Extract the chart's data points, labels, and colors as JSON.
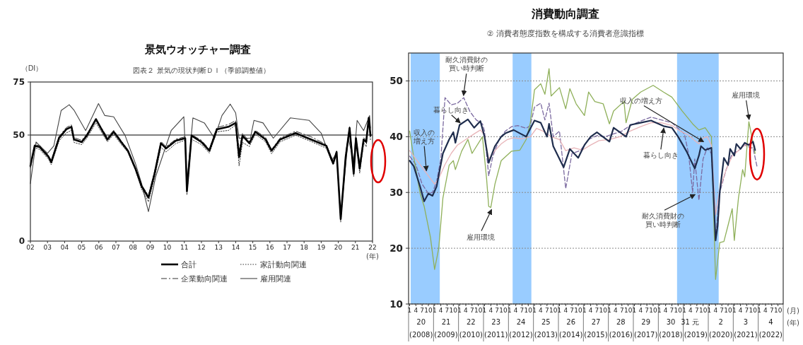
{
  "chart_data": [
    {
      "type": "line",
      "title": "景気ウオッチャー調査",
      "subtitle": "図表２ 景気の現状判断ＤＩ（季節調整値）",
      "ylabel": "（DI）",
      "xlim": [
        2002,
        2022
      ],
      "ylim": [
        0,
        75
      ],
      "yticks": [
        0,
        50,
        75
      ],
      "xticks": [
        {
          "value": 2002,
          "label": "02"
        },
        {
          "value": 2003,
          "label": "03"
        },
        {
          "value": 2004,
          "label": "04"
        },
        {
          "value": 2005,
          "label": "05"
        },
        {
          "value": 2006,
          "label": "06"
        },
        {
          "value": 2007,
          "label": "07"
        },
        {
          "value": 2008,
          "label": "08"
        },
        {
          "value": 2009,
          "label": "09"
        },
        {
          "value": 2010,
          "label": "10"
        },
        {
          "value": 2011,
          "label": "11"
        },
        {
          "value": 2012,
          "label": "12"
        },
        {
          "value": 2013,
          "label": "13"
        },
        {
          "value": 2014,
          "label": "14"
        },
        {
          "value": 2015,
          "label": "15"
        },
        {
          "value": 2016,
          "label": "16"
        },
        {
          "value": 2017,
          "label": "17"
        },
        {
          "value": 2018,
          "label": "18"
        },
        {
          "value": 2019,
          "label": "19"
        },
        {
          "value": 2020,
          "label": "20"
        },
        {
          "value": 2021,
          "label": "21"
        },
        {
          "value": 2022,
          "label": "22"
        }
      ],
      "ref_lines": [
        {
          "axis": "y",
          "value": 50,
          "color": "#000000",
          "line_style": "solid"
        }
      ],
      "legend": "bottom",
      "annotations": [
        "(年)"
      ],
      "series": [
        {
          "name": "合計",
          "color": "#000000",
          "line_style": "solid",
          "x": [
            2002.0,
            2002.25,
            2002.55,
            2003.07,
            2003.22,
            2003.67,
            2004.1,
            2004.4,
            2004.55,
            2005.0,
            2005.3,
            2005.83,
            2006.2,
            2006.5,
            2006.87,
            2007.25,
            2007.7,
            2008.14,
            2008.5,
            2008.9,
            2009.26,
            2009.63,
            2009.93,
            2010.5,
            2011.05,
            2011.15,
            2011.42,
            2012.0,
            2012.46,
            2012.9,
            2013.58,
            2014.0,
            2014.2,
            2014.4,
            2014.8,
            2015.15,
            2015.75,
            2016.1,
            2016.6,
            2017.5,
            2018.4,
            2019.3,
            2019.7,
            2019.9,
            2020.14,
            2020.43,
            2020.66,
            2020.9,
            2021.03,
            2021.25,
            2021.48,
            2021.63,
            2021.78,
            2021.88
          ],
          "values": [
            35.4,
            44.9,
            44.3,
            39.6,
            37.2,
            48.5,
            52.7,
            53.9,
            47.9,
            46.7,
            49.7,
            57.5,
            52.1,
            47.9,
            51.5,
            47.3,
            42.6,
            34.2,
            25.9,
            20.5,
            31.8,
            46.1,
            43.7,
            47.3,
            48.5,
            23.5,
            49.7,
            46.7,
            42.6,
            52.7,
            53.9,
            55.7,
            39.6,
            49.7,
            46.1,
            51.5,
            47.9,
            42.6,
            47.9,
            50.9,
            47.9,
            44.9,
            36.6,
            42.0,
            10.4,
            39.6,
            53.3,
            31.8,
            48.5,
            34.2,
            47.9,
            46.7,
            58.1,
            49.7
          ]
        },
        {
          "name": "家計動向関連",
          "color": "#333333",
          "line_style": "dotted",
          "x": [
            2002.0,
            2002.25,
            2002.55,
            2003.07,
            2003.22,
            2003.67,
            2004.1,
            2004.4,
            2004.55,
            2005.0,
            2005.3,
            2005.83,
            2006.2,
            2006.5,
            2006.87,
            2007.25,
            2007.7,
            2008.14,
            2008.5,
            2008.9,
            2009.26,
            2009.63,
            2009.93,
            2010.5,
            2011.05,
            2011.15,
            2011.42,
            2012.0,
            2012.46,
            2012.9,
            2013.58,
            2014.0,
            2014.2,
            2014.4,
            2014.8,
            2015.15,
            2015.75,
            2016.1,
            2016.6,
            2017.5,
            2018.4,
            2019.3,
            2019.7,
            2019.9,
            2020.14,
            2020.43,
            2020.66,
            2020.9,
            2021.03,
            2021.25,
            2021.48,
            2021.63,
            2021.78,
            2021.88
          ],
          "values": [
            34.5,
            44.0,
            43.2,
            38.5,
            36.0,
            47.2,
            51.0,
            52.2,
            46.5,
            45.5,
            48.5,
            55.8,
            50.8,
            46.8,
            50.3,
            46.2,
            41.8,
            33.5,
            24.5,
            18.5,
            30.0,
            44.2,
            42.0,
            46.0,
            47.6,
            21.8,
            48.0,
            45.5,
            41.5,
            51.5,
            52.2,
            54.8,
            35.5,
            46.5,
            44.6,
            50.4,
            46.8,
            41.2,
            46.8,
            49.9,
            47.0,
            43.8,
            36.0,
            41.2,
            9.0,
            38.8,
            52.5,
            30.5,
            47.5,
            32.0,
            46.5,
            44.5,
            57.5,
            47.5
          ]
        },
        {
          "name": "企業動向関連",
          "color": "#333333",
          "line_style": "dashdot",
          "x": [
            2002.0,
            2002.25,
            2002.55,
            2003.07,
            2003.22,
            2003.67,
            2004.1,
            2004.4,
            2004.55,
            2005.0,
            2005.3,
            2005.83,
            2006.2,
            2006.5,
            2006.87,
            2007.25,
            2007.7,
            2008.14,
            2008.5,
            2008.9,
            2009.26,
            2009.63,
            2009.93,
            2010.5,
            2011.05,
            2011.15,
            2011.42,
            2012.0,
            2012.46,
            2012.9,
            2013.58,
            2014.0,
            2014.2,
            2014.4,
            2014.8,
            2015.15,
            2015.75,
            2016.1,
            2016.6,
            2017.5,
            2018.4,
            2019.3,
            2019.7,
            2019.9,
            2020.14,
            2020.43,
            2020.66,
            2020.9,
            2021.03,
            2021.25,
            2021.48,
            2021.63,
            2021.78,
            2021.88
          ],
          "values": [
            36.0,
            45.5,
            45.0,
            40.2,
            38.0,
            49.3,
            53.5,
            54.8,
            48.8,
            47.5,
            50.5,
            57.0,
            52.8,
            48.9,
            52.2,
            48.0,
            43.0,
            34.5,
            26.5,
            21.5,
            32.8,
            47.0,
            44.5,
            48.0,
            49.2,
            25.0,
            50.2,
            47.5,
            43.3,
            53.5,
            55.0,
            56.8,
            42.8,
            50.8,
            47.0,
            52.2,
            48.8,
            43.2,
            48.6,
            51.8,
            49.2,
            45.5,
            37.5,
            42.5,
            11.5,
            41.0,
            54.0,
            33.5,
            49.0,
            36.0,
            48.8,
            47.5,
            58.5,
            51.0
          ]
        },
        {
          "name": "雇用関連",
          "color": "#444444",
          "line_style": "solid",
          "x": [
            2002.0,
            2002.33,
            2003.0,
            2003.37,
            2003.8,
            2004.27,
            2004.56,
            2005.23,
            2005.98,
            2006.35,
            2006.87,
            2007.54,
            2008.14,
            2008.5,
            2008.9,
            2009.33,
            2010.23,
            2010.97,
            2011.15,
            2011.5,
            2012.17,
            2012.76,
            2013.2,
            2013.68,
            2014.0,
            2014.2,
            2014.86,
            2015.07,
            2015.6,
            2016.2,
            2017.2,
            2018.3,
            2019.0,
            2019.6,
            2019.9,
            2020.14,
            2020.58,
            2020.9,
            2021.1,
            2021.48,
            2021.83,
            2021.88
          ],
          "values": [
            27.1,
            46.7,
            41.4,
            44.9,
            61.6,
            64.3,
            61.6,
            52.1,
            64.8,
            59.2,
            58.6,
            49.7,
            36.6,
            27.1,
            13.9,
            30.6,
            52.1,
            58.6,
            27.1,
            58.1,
            55.7,
            48.5,
            59.2,
            64.6,
            60.4,
            48.5,
            48.5,
            56.9,
            55.7,
            48.5,
            58.1,
            56.9,
            50.9,
            37.8,
            41.4,
            11.6,
            48.5,
            37.8,
            56.9,
            52.1,
            59.2,
            53.3
          ]
        }
      ]
    },
    {
      "type": "line",
      "title": "消費動向調査",
      "subtitle": "② 消費者態度指数を構成する消費者意識指標",
      "xlim": [
        "2008-01-01",
        "2023-01-01"
      ],
      "ylim": [
        10,
        55
      ],
      "yticks": [
        10,
        20,
        30,
        40,
        50
      ],
      "grid": "y",
      "x2lim": [
        "2008-01-01",
        "2023-01-01"
      ],
      "x2ticks": [
        {
          "value": "2008-07-01",
          "label": "20\n(2008)"
        },
        {
          "value": "2009-07-01",
          "label": "21\n(2009)"
        },
        {
          "value": "2010-07-01",
          "label": "22\n(2010)"
        },
        {
          "value": "2011-07-01",
          "label": "23\n(2011)"
        },
        {
          "value": "2012-07-01",
          "label": "24\n(2012)"
        },
        {
          "value": "2013-07-01",
          "label": "25\n(2013)"
        },
        {
          "value": "2014-07-01",
          "label": "26\n(2014)"
        },
        {
          "value": "2015-07-01",
          "label": "27\n(2015)"
        },
        {
          "value": "2016-07-01",
          "label": "28\n(2016)"
        },
        {
          "value": "2017-07-01",
          "label": "29\n(2017)"
        },
        {
          "value": "2018-07-01",
          "label": "30\n(2018)"
        },
        {
          "value": "2019-02-01",
          "label": "31"
        },
        {
          "value": "2019-07-01",
          "label": "元\n(2019)"
        },
        {
          "value": "2020-07-01",
          "label": "2\n(2020)"
        },
        {
          "value": "2021-07-01",
          "label": "3\n(2021)"
        },
        {
          "value": "2022-07-01",
          "label": "4\n(2022)"
        }
      ],
      "xticks": [
        {
          "value": "2008-01-01",
          "label": null
        },
        {
          "value": "2008-01",
          "label": "1"
        },
        {
          "value": "2008-04",
          "label": "4"
        },
        {
          "value": "2008-07",
          "label": "7"
        },
        {
          "value": "2008-10",
          "label": "10"
        },
        {
          "value": "2009-01-01",
          "label": null
        },
        {
          "value": "2009-01",
          "label": "1"
        },
        {
          "value": "2009-04",
          "label": "4"
        },
        {
          "value": "2009-07",
          "label": "7"
        },
        {
          "value": "2009-10",
          "label": "10"
        },
        {
          "value": "2010-01-01",
          "label": null
        },
        {
          "value": "2010-01",
          "label": "1"
        },
        {
          "value": "2010-04",
          "label": "4"
        },
        {
          "value": "2010-07",
          "label": "7"
        },
        {
          "value": "2010-10",
          "label": "10"
        },
        {
          "value": "2011-01-01",
          "label": null
        },
        {
          "value": "2011-01",
          "label": "1"
        },
        {
          "value": "2011-04",
          "label": "4"
        },
        {
          "value": "2011-07",
          "label": "7"
        },
        {
          "value": "2011-10",
          "label": "10"
        },
        {
          "value": "2012-01-01",
          "label": null
        },
        {
          "value": "2012-01",
          "label": "1"
        },
        {
          "value": "2012-04",
          "label": "4"
        },
        {
          "value": "2012-07",
          "label": "7"
        },
        {
          "value": "2012-10",
          "label": "10"
        },
        {
          "value": "2013-01-01",
          "label": null
        },
        {
          "value": "2013-01",
          "label": "1"
        },
        {
          "value": "2013-04",
          "label": "4"
        },
        {
          "value": "2013-07",
          "label": "7"
        },
        {
          "value": "2013-10",
          "label": "10"
        },
        {
          "value": "2014-01-01",
          "label": null
        },
        {
          "value": "2014-01",
          "label": "1"
        },
        {
          "value": "2014-04",
          "label": "4"
        },
        {
          "value": "2014-07",
          "label": "7"
        },
        {
          "value": "2014-10",
          "label": "10"
        },
        {
          "value": "2015-01-01",
          "label": null
        },
        {
          "value": "2015-01",
          "label": "1"
        },
        {
          "value": "2015-04",
          "label": "4"
        },
        {
          "value": "2015-07",
          "label": "7"
        },
        {
          "value": "2015-10",
          "label": "10"
        },
        {
          "value": "2016-01-01",
          "label": null
        },
        {
          "value": "2016-01",
          "label": "1"
        },
        {
          "value": "2016-04",
          "label": "4"
        },
        {
          "value": "2016-07",
          "label": "7"
        },
        {
          "value": "2016-10",
          "label": "10"
        },
        {
          "value": "2017-01-01",
          "label": null
        },
        {
          "value": "2017-01",
          "label": "1"
        },
        {
          "value": "2017-04",
          "label": "4"
        },
        {
          "value": "2017-07",
          "label": "7"
        },
        {
          "value": "2017-10",
          "label": "10"
        },
        {
          "value": "2018-01-01",
          "label": null
        },
        {
          "value": "2018-01",
          "label": "1"
        },
        {
          "value": "2018-04",
          "label": "4"
        },
        {
          "value": "2018-07",
          "label": "7"
        },
        {
          "value": "2018-10",
          "label": "10"
        },
        {
          "value": "2019-01-01",
          "label": null
        },
        {
          "value": "2019-01",
          "label": "1"
        },
        {
          "value": "2019-04",
          "label": "4"
        },
        {
          "value": "2019-07",
          "label": "7"
        },
        {
          "value": "2019-10",
          "label": "10"
        },
        {
          "value": "2020-01-01",
          "label": null
        },
        {
          "value": "2020-01",
          "label": "1"
        },
        {
          "value": "2020-04",
          "label": "4"
        },
        {
          "value": "2020-07",
          "label": "7"
        },
        {
          "value": "2020-10",
          "label": "10"
        },
        {
          "value": "2021-01-01",
          "label": null
        },
        {
          "value": "2021-01",
          "label": "1"
        },
        {
          "value": "2021-04",
          "label": "4"
        },
        {
          "value": "2021-07",
          "label": "7"
        },
        {
          "value": "2021-10",
          "label": "10"
        },
        {
          "value": "2022-01-01",
          "label": null
        },
        {
          "value": "2022-01",
          "label": "1"
        },
        {
          "value": "2022-04",
          "label": "4"
        },
        {
          "value": "2022-07",
          "label": "7"
        },
        {
          "value": "2022-10",
          "label": "10"
        },
        {
          "value": "2023-01-01",
          "label": null
        }
      ],
      "bands": [
        {
          "axis": "x",
          "from": "2008-02-01",
          "to": "2009-04-01",
          "color": "#99ccff"
        },
        {
          "axis": "x",
          "from": "2012-03-01",
          "to": "2012-12-01",
          "color": "#99ccff"
        },
        {
          "axis": "x",
          "from": "2018-10-01",
          "to": "2020-06-01",
          "color": "#99ccff"
        }
      ],
      "annotations": [
        {
          "text": "耐久消費財の買い時判断",
          "x": "2010-03",
          "y": 47.0
        },
        {
          "text": "暮らし向き",
          "x": "2010-01",
          "y": 42.1
        },
        {
          "text": "収入の増え方",
          "x": "2008-09",
          "y": 33.5
        },
        {
          "text": "雇用環境",
          "x": "2011-04",
          "y": 27.3
        },
        {
          "text": "収入の増え方",
          "x": "2019-08",
          "y": 38.7
        },
        {
          "text": "暮らし向き",
          "x": "2018-03",
          "y": 41.9
        },
        {
          "text": "耐久消費財の買い時判断",
          "x": "2019-05",
          "y": 30.0
        },
        {
          "text": "雇用環境",
          "x": "2021-08",
          "y": 42.7
        },
        "(月)",
        "(年)"
      ],
      "series": [
        {
          "color": "#1f2d4d",
          "line_style": "solid",
          "x": [
            "2008-01",
            "2008-03",
            "2008-06",
            "2008-08",
            "2008-10",
            "2008-12",
            "2009-02",
            "2009-05",
            "2009-08",
            "2009-10",
            "2009-11",
            "2010-01",
            "2010-05",
            "2010-08",
            "2010-11",
            "2011-01",
            "2011-03",
            "2011-06",
            "2011-09",
            "2011-11",
            "2012-03",
            "2012-06",
            "2012-09",
            "2013-01",
            "2013-04",
            "2013-07",
            "2013-08",
            "2013-10",
            "2014-03",
            "2014-06",
            "2014-10",
            "2015-01",
            "2015-04",
            "2015-07",
            "2016-01",
            "2016-03",
            "2016-09",
            "2016-11",
            "2017-04",
            "2017-09",
            "2018-03",
            "2018-07",
            "2018-10",
            "2019-02",
            "2019-06",
            "2019-08",
            "2019-09",
            "2019-11",
            "2020-02",
            "2020-04",
            "2020-05",
            "2020-06",
            "2020-08",
            "2020-10",
            "2020-11",
            "2021-01",
            "2021-02",
            "2021-04",
            "2021-06",
            "2021-08",
            "2021-10",
            "2021-11"
          ],
          "values": [
            35.7,
            34.7,
            31.1,
            28.4,
            29.8,
            29.4,
            31.1,
            37.0,
            39.5,
            40.8,
            38.9,
            42.1,
            43.1,
            41.6,
            42.8,
            40.0,
            35.3,
            38.3,
            40.0,
            40.6,
            41.2,
            40.6,
            40.0,
            42.9,
            42.5,
            40.0,
            42.3,
            38.3,
            34.5,
            37.8,
            36.2,
            38.5,
            40.0,
            40.8,
            39.1,
            41.6,
            40.0,
            42.1,
            42.5,
            42.9,
            41.9,
            41.6,
            40.0,
            37.4,
            34.3,
            36.6,
            38.3,
            37.6,
            38.0,
            21.4,
            24.0,
            30.0,
            36.2,
            34.9,
            37.8,
            36.6,
            38.7,
            37.8,
            38.9,
            38.5,
            39.1,
            37.6
          ]
        },
        {
          "color": "#e8b4b8",
          "line_style": "solid",
          "x": [
            "2008-01",
            "2008-04",
            "2008-07",
            "2008-10",
            "2009-01",
            "2009-03",
            "2009-06",
            "2009-09",
            "2009-12",
            "2010-04",
            "2010-08",
            "2010-11",
            "2011-01",
            "2011-03",
            "2011-06",
            "2011-09",
            "2011-12",
            "2012-03",
            "2012-07",
            "2012-11",
            "2013-02",
            "2013-05",
            "2013-09",
            "2014-01",
            "2014-04",
            "2014-08",
            "2014-12",
            "2015-04",
            "2015-08",
            "2016-01",
            "2016-06",
            "2016-11",
            "2017-04",
            "2017-09",
            "2018-02",
            "2018-07",
            "2018-11",
            "2019-03",
            "2019-06",
            "2019-08",
            "2019-10",
            "2019-12",
            "2020-02",
            "2020-04",
            "2020-06",
            "2020-09",
            "2020-12",
            "2021-03",
            "2021-06",
            "2021-09",
            "2021-11"
          ],
          "values": [
            37.5,
            36.0,
            34.5,
            33.0,
            31.5,
            32.5,
            35.0,
            37.0,
            38.5,
            39.5,
            40.5,
            41.2,
            40.3,
            36.0,
            37.5,
            38.7,
            39.5,
            39.8,
            39.6,
            40.0,
            41.5,
            41.0,
            40.0,
            39.5,
            37.5,
            38.0,
            37.6,
            38.5,
            39.3,
            39.5,
            40.0,
            41.0,
            41.8,
            42.5,
            42.5,
            42.0,
            41.0,
            40.3,
            39.3,
            38.7,
            39.7,
            40.0,
            38.5,
            26.0,
            30.5,
            34.0,
            36.5,
            37.5,
            38.5,
            38.8,
            38.3
          ]
        },
        {
          "color": "#8fb05a",
          "line_style": "solid",
          "x": [
            "2008-01",
            "2008-03",
            "2008-06",
            "2008-08",
            "2008-11",
            "2009-01",
            "2009-03",
            "2009-05",
            "2009-08",
            "2009-10",
            "2009-11",
            "2010-02",
            "2010-05",
            "2010-07",
            "2010-12",
            "2011-02",
            "2011-03",
            "2011-04",
            "2011-06",
            "2011-09",
            "2012-02",
            "2012-06",
            "2012-09",
            "2012-11",
            "2013-01",
            "2013-04",
            "2013-06",
            "2013-08",
            "2013-09",
            "2014-01",
            "2014-04",
            "2014-06",
            "2014-09",
            "2015-01",
            "2015-03",
            "2015-06",
            "2015-10",
            "2016-01",
            "2016-03",
            "2016-08",
            "2016-09",
            "2016-12",
            "2017-04",
            "2017-10",
            "2018-03",
            "2018-07",
            "2018-12",
            "2019-05",
            "2019-08",
            "2019-11",
            "2020-02",
            "2020-04",
            "2020-06",
            "2020-08",
            "2020-10",
            "2020-12",
            "2021-01",
            "2021-03",
            "2021-05",
            "2021-06",
            "2021-08",
            "2021-09",
            "2021-11"
          ],
          "values": [
            41.0,
            36.3,
            29.9,
            27.5,
            22.0,
            16.2,
            20.0,
            29.0,
            34.9,
            35.7,
            34.1,
            37.4,
            39.5,
            37.0,
            40.0,
            32.4,
            27.5,
            27.3,
            31.5,
            35.7,
            37.4,
            37.6,
            39.5,
            42.5,
            48.4,
            49.5,
            47.6,
            52.2,
            47.3,
            48.8,
            45.0,
            48.6,
            45.9,
            43.8,
            48.0,
            46.3,
            45.9,
            42.3,
            44.6,
            46.3,
            42.5,
            46.7,
            48.0,
            49.2,
            48.0,
            47.1,
            44.6,
            42.3,
            41.2,
            41.6,
            40.0,
            14.4,
            21.0,
            21.2,
            24.1,
            27.1,
            21.4,
            29.0,
            34.1,
            32.8,
            42.7,
            40.8,
            37.0
          ]
        },
        {
          "color": "#7b6aa0",
          "line_style": "dashed",
          "x": [
            "2008-01",
            "2008-04",
            "2008-07",
            "2008-10",
            "2008-12",
            "2009-02",
            "2009-04",
            "2009-06",
            "2009-09",
            "2009-12",
            "2010-03",
            "2010-06",
            "2010-09",
            "2010-12",
            "2011-01",
            "2011-03",
            "2011-05",
            "2011-08",
            "2011-11",
            "2012-02",
            "2012-05",
            "2012-09",
            "2012-11",
            "2013-01",
            "2013-04",
            "2013-06",
            "2013-08",
            "2013-10",
            "2014-01",
            "2014-04",
            "2014-07",
            "2014-11",
            "2015-03",
            "2015-07",
            "2015-11",
            "2016-03",
            "2016-07",
            "2016-11",
            "2017-04",
            "2017-09",
            "2018-02",
            "2018-07",
            "2018-10",
            "2019-01",
            "2019-03",
            "2019-05",
            "2019-06",
            "2019-08",
            "2019-10",
            "2019-12",
            "2020-02",
            "2020-04",
            "2020-06",
            "2020-09",
            "2020-12",
            "2021-03",
            "2021-06",
            "2021-09",
            "2021-10",
            "2021-12"
          ],
          "values": [
            36.5,
            35.0,
            31.5,
            29.8,
            30.0,
            32.0,
            36.0,
            47.0,
            45.7,
            46.0,
            47.0,
            44.5,
            43.0,
            42.3,
            41.0,
            33.0,
            36.5,
            39.5,
            41.0,
            41.8,
            42.0,
            41.5,
            42.0,
            45.3,
            46.0,
            43.0,
            46.0,
            40.0,
            41.0,
            30.7,
            37.0,
            37.5,
            39.5,
            40.2,
            40.0,
            40.5,
            41.0,
            42.0,
            42.8,
            43.5,
            43.0,
            42.5,
            41.5,
            40.5,
            37.0,
            30.0,
            36.0,
            28.6,
            36.0,
            38.0,
            37.0,
            22.0,
            30.0,
            34.0,
            37.0,
            37.5,
            38.5,
            38.0,
            38.0,
            34.5
          ]
        }
      ]
    }
  ]
}
